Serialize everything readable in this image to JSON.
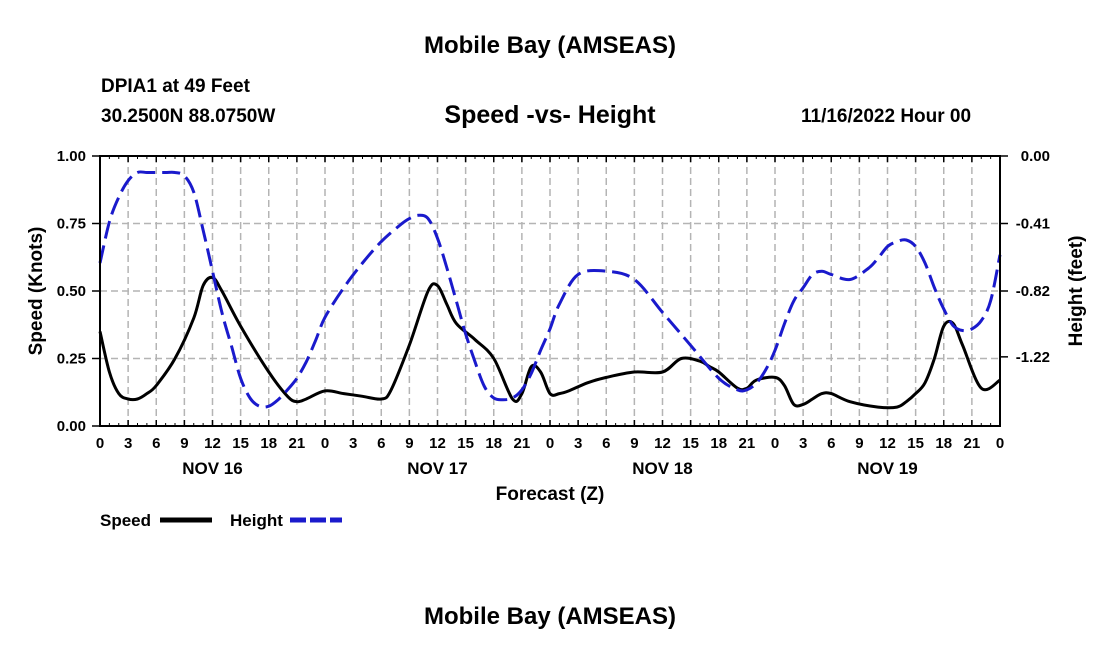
{
  "header": {
    "title": "Mobile Bay (AMSEAS)",
    "station": "DPIA1 at 49 Feet",
    "coordinates": "30.2500N  88.0750W",
    "datetime": "11/16/2022 Hour 00"
  },
  "footer": {
    "title": "Mobile Bay (AMSEAS)"
  },
  "legend": {
    "speed_label": "Speed",
    "height_label": "Height"
  },
  "colors": {
    "speed": "#000000",
    "height": "#1a1acc",
    "grid": "#b4b4b4"
  },
  "chart_data": {
    "type": "line",
    "title": "Speed -vs- Height",
    "xlabel": "Forecast (Z)",
    "ylabel": "Speed (Knots)",
    "y2label": "Height (feet)",
    "x_unit": "hours since 11/16/2022 00Z",
    "xlim": [
      0,
      96
    ],
    "ylim": [
      0,
      1
    ],
    "y2lim": [
      -1.64,
      0
    ],
    "x_ticks": [
      0,
      3,
      6,
      9,
      12,
      15,
      18,
      21,
      24,
      27,
      30,
      33,
      36,
      39,
      42,
      45,
      48,
      51,
      54,
      57,
      60,
      63,
      66,
      69,
      72,
      75,
      78,
      81,
      84,
      87,
      90,
      93,
      96
    ],
    "x_tick_labels": [
      "0",
      "3",
      "6",
      "9",
      "12",
      "15",
      "18",
      "21",
      "0",
      "3",
      "6",
      "9",
      "12",
      "15",
      "18",
      "21",
      "0",
      "3",
      "6",
      "9",
      "12",
      "15",
      "18",
      "21",
      "0",
      "3",
      "6",
      "9",
      "12",
      "15",
      "18",
      "21",
      "0"
    ],
    "day_labels": [
      {
        "x": 12,
        "label": "NOV 16"
      },
      {
        "x": 36,
        "label": "NOV 17"
      },
      {
        "x": 60,
        "label": "NOV 18"
      },
      {
        "x": 84,
        "label": "NOV 19"
      }
    ],
    "y_ticks": [
      0,
      0.25,
      0.5,
      0.75,
      1.0
    ],
    "y_tick_labels": [
      "0.00",
      "0.25",
      "0.50",
      "0.75",
      "1.00"
    ],
    "y2_ticks": [
      0,
      -0.41,
      -0.82,
      -1.22
    ],
    "y2_tick_labels": [
      "0.00",
      "-0.41",
      "-0.82",
      "-1.22"
    ],
    "grid": true,
    "series": [
      {
        "name": "Speed",
        "axis": "left",
        "style": "solid",
        "x": [
          0,
          1,
          2,
          3,
          4,
          5,
          6,
          8,
          10,
          11,
          12,
          13,
          15,
          18,
          20,
          21,
          22,
          24,
          26,
          28,
          30,
          31,
          33,
          35,
          36,
          37,
          38,
          40,
          42,
          44,
          45,
          46,
          47,
          48,
          49,
          50,
          52,
          54,
          57,
          60,
          62,
          64,
          65,
          66,
          68,
          69,
          70,
          72,
          73,
          74,
          75,
          76,
          77,
          78,
          80,
          83,
          85,
          86,
          87,
          88,
          89,
          90,
          91,
          92,
          94,
          96
        ],
        "values": [
          0.35,
          0.2,
          0.12,
          0.1,
          0.1,
          0.12,
          0.15,
          0.25,
          0.4,
          0.52,
          0.55,
          0.5,
          0.37,
          0.2,
          0.11,
          0.09,
          0.1,
          0.13,
          0.12,
          0.11,
          0.1,
          0.13,
          0.3,
          0.5,
          0.52,
          0.45,
          0.38,
          0.32,
          0.25,
          0.1,
          0.12,
          0.22,
          0.2,
          0.12,
          0.12,
          0.13,
          0.16,
          0.18,
          0.2,
          0.2,
          0.25,
          0.24,
          0.22,
          0.2,
          0.14,
          0.14,
          0.17,
          0.18,
          0.15,
          0.08,
          0.08,
          0.1,
          0.12,
          0.12,
          0.09,
          0.07,
          0.07,
          0.09,
          0.12,
          0.16,
          0.25,
          0.37,
          0.38,
          0.3,
          0.14,
          0.17
        ]
      },
      {
        "name": "Height",
        "axis": "right",
        "style": "dashed",
        "x": [
          0,
          1,
          2,
          3,
          4,
          5,
          6,
          7,
          8,
          9,
          10,
          11,
          12,
          13,
          14,
          15,
          16,
          17,
          18,
          19,
          20,
          21,
          22,
          23,
          24,
          26,
          28,
          30,
          32,
          33,
          34,
          35,
          36,
          37,
          38,
          39,
          40,
          41,
          42,
          43,
          44,
          45,
          46,
          47,
          48,
          49,
          51,
          54,
          57,
          60,
          63,
          66,
          68,
          69,
          70,
          71,
          72,
          73,
          74,
          75,
          76,
          77,
          78,
          80,
          82,
          83,
          84,
          85,
          86,
          87,
          88,
          89,
          90,
          91,
          92,
          93,
          94,
          95,
          96
        ],
        "values": [
          -0.65,
          -0.4,
          -0.25,
          -0.15,
          -0.1,
          -0.1,
          -0.1,
          -0.1,
          -0.1,
          -0.12,
          -0.22,
          -0.45,
          -0.7,
          -0.95,
          -1.15,
          -1.35,
          -1.47,
          -1.52,
          -1.52,
          -1.48,
          -1.42,
          -1.35,
          -1.25,
          -1.12,
          -0.98,
          -0.8,
          -0.65,
          -0.52,
          -0.42,
          -0.38,
          -0.36,
          -0.38,
          -0.5,
          -0.68,
          -0.88,
          -1.08,
          -1.25,
          -1.4,
          -1.47,
          -1.48,
          -1.47,
          -1.42,
          -1.32,
          -1.18,
          -1.05,
          -0.9,
          -0.72,
          -0.7,
          -0.75,
          -0.95,
          -1.15,
          -1.35,
          -1.42,
          -1.42,
          -1.38,
          -1.3,
          -1.18,
          -1.02,
          -0.88,
          -0.8,
          -0.72,
          -0.7,
          -0.72,
          -0.75,
          -0.68,
          -0.62,
          -0.55,
          -0.52,
          -0.51,
          -0.55,
          -0.65,
          -0.8,
          -0.93,
          -1.03,
          -1.06,
          -1.05,
          -1.0,
          -0.88,
          -0.6
        ]
      }
    ]
  }
}
